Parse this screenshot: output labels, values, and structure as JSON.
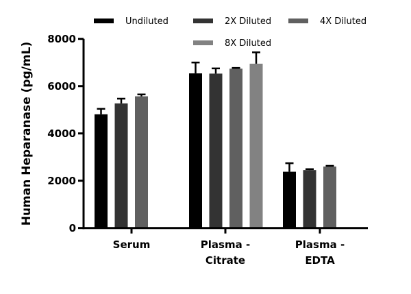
{
  "chart_data": {
    "type": "bar",
    "title": "",
    "xlabel": "",
    "ylabel": "Human Heparanase (pg/mL)",
    "ylim": [
      0,
      8000
    ],
    "yticks": [
      0,
      2000,
      4000,
      6000,
      8000
    ],
    "grid": false,
    "legend_position": "top",
    "categories": [
      [
        "Serum"
      ],
      [
        "Plasma -",
        "Citrate"
      ],
      [
        "Plasma -",
        "EDTA"
      ]
    ],
    "series": [
      {
        "name": "Undiluted",
        "color": "#000000",
        "values": [
          4810,
          6540,
          2380
        ],
        "errors": [
          230,
          460,
          360
        ]
      },
      {
        "name": "2X Diluted",
        "color": "#333333",
        "values": [
          5270,
          6530,
          2450
        ],
        "errors": [
          200,
          220,
          40
        ]
      },
      {
        "name": "4X Diluted",
        "color": "#606060",
        "values": [
          5570,
          6740,
          2600
        ],
        "errors": [
          80,
          30,
          30
        ]
      },
      {
        "name": "8X Diluted",
        "color": "#828282",
        "values": [
          null,
          6950,
          null
        ],
        "errors": [
          null,
          480,
          null
        ]
      }
    ]
  }
}
